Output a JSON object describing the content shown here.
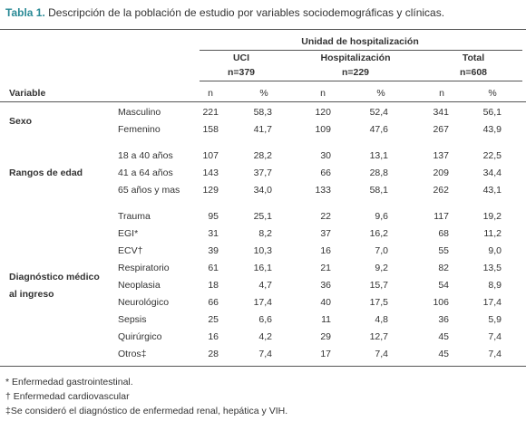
{
  "title": {
    "label": "Tabla 1.",
    "text": "Descripción de la población de estudio por variables sociodemográficas y clínicas."
  },
  "table": {
    "super_header": "Unidad de hospitalización",
    "groups": [
      {
        "name": "UCI",
        "n": "n=379"
      },
      {
        "name": "Hospitalización",
        "n": "n=229"
      },
      {
        "name": "Total",
        "n": "n=608"
      }
    ],
    "columns": [
      "Variable",
      "n",
      "%",
      "n",
      "%",
      "n",
      "%"
    ],
    "sections": [
      {
        "label": [
          "Sexo"
        ],
        "rows": [
          [
            "Masculino",
            "221",
            "58,3",
            "120",
            "52,4",
            "341",
            "56,1"
          ],
          [
            "Femenino",
            "158",
            "41,7",
            "109",
            "47,6",
            "267",
            "43,9"
          ]
        ]
      },
      {
        "label": [
          "Rangos de edad"
        ],
        "rows": [
          [
            "18 a 40 años",
            "107",
            "28,2",
            "30",
            "13,1",
            "137",
            "22,5"
          ],
          [
            "41 a 64 años",
            "143",
            "37,7",
            "66",
            "28,8",
            "209",
            "34,4"
          ],
          [
            "65 años y mas",
            "129",
            "34,0",
            "133",
            "58,1",
            "262",
            "43,1"
          ]
        ]
      },
      {
        "label": [
          "Diagnóstico médico",
          "al ingreso"
        ],
        "rows": [
          [
            "Trauma",
            "95",
            "25,1",
            "22",
            "9,6",
            "117",
            "19,2"
          ],
          [
            "EGI*",
            "31",
            "8,2",
            "37",
            "16,2",
            "68",
            "11,2"
          ],
          [
            "ECV†",
            "39",
            "10,3",
            "16",
            "7,0",
            "55",
            "9,0"
          ],
          [
            "Respiratorio",
            "61",
            "16,1",
            "21",
            "9,2",
            "82",
            "13,5"
          ],
          [
            "Neoplasia",
            "18",
            "4,7",
            "36",
            "15,7",
            "54",
            "8,9"
          ],
          [
            "Neurológico",
            "66",
            "17,4",
            "40",
            "17,5",
            "106",
            "17,4"
          ],
          [
            "Sepsis",
            "25",
            "6,6",
            "11",
            "4,8",
            "36",
            "5,9"
          ],
          [
            "Quirúrgico",
            "16",
            "4,2",
            "29",
            "12,7",
            "45",
            "7,4"
          ],
          [
            "Otros‡",
            "28",
            "7,4",
            "17",
            "7,4",
            "45",
            "7,4"
          ]
        ]
      }
    ]
  },
  "footnotes": [
    "* Enfermedad gastrointestinal.",
    "† Enfermedad cardiovascular",
    "‡Se consideró el diagnóstico de enfermedad renal, hepática y VIH."
  ]
}
